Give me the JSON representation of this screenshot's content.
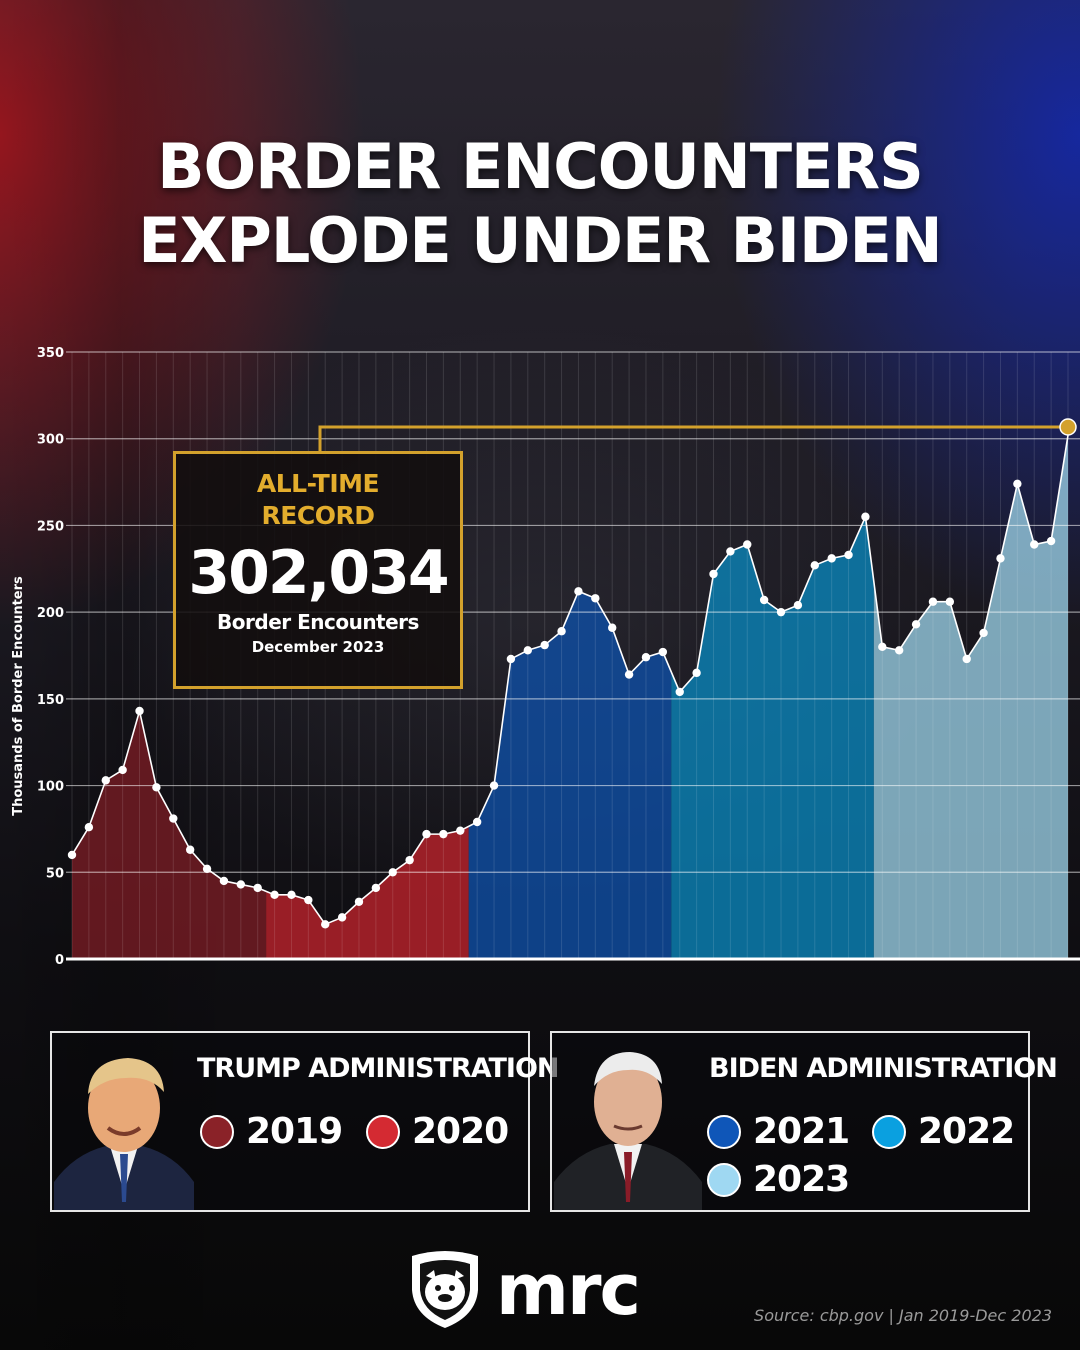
{
  "title": {
    "line1": "BORDER ENCOUNTERS",
    "line2": "EXPLODE UNDER BIDEN"
  },
  "chart_data": {
    "type": "area",
    "ylabel": "Thousands of Border Encounters",
    "ylim": [
      0,
      350
    ],
    "yticks": [
      0,
      50,
      100,
      150,
      200,
      250,
      300,
      350
    ],
    "x_period": "Jan 2019 - Dec 2023 (monthly)",
    "grid": true,
    "series": [
      {
        "name": "2019",
        "color": "#7a1c24",
        "values": [
          60,
          76,
          103,
          109,
          143,
          99,
          81,
          63,
          52,
          45,
          43,
          41
        ]
      },
      {
        "name": "2020",
        "color": "#c0222c",
        "values": [
          37,
          37,
          34,
          20,
          24,
          33,
          41,
          50,
          57,
          72,
          72,
          74
        ]
      },
      {
        "name": "2021",
        "color": "#0e4fa8",
        "values": [
          79,
          100,
          173,
          178,
          181,
          189,
          212,
          208,
          191,
          164,
          174,
          177
        ]
      },
      {
        "name": "2022",
        "color": "#0a86bd",
        "values": [
          154,
          165,
          222,
          235,
          239,
          207,
          200,
          204,
          227,
          231,
          233,
          255
        ]
      },
      {
        "name": "2023",
        "color": "#9ad0e6",
        "values": [
          180,
          178,
          193,
          206,
          206,
          173,
          188,
          231,
          274,
          239,
          241,
          302
        ]
      }
    ],
    "annotation": {
      "label": "ALL-TIME RECORD",
      "value": "302,034",
      "sub": "Border Encounters",
      "date": "December 2023",
      "color": "#d3a12c"
    }
  },
  "legend": {
    "trump": {
      "title": "TRUMP ADMINISTRATION",
      "items": [
        {
          "label": "2019",
          "color": "#8a2228"
        },
        {
          "label": "2020",
          "color": "#d42a32"
        }
      ]
    },
    "biden": {
      "title": "BIDEN ADMINISTRATION",
      "items": [
        {
          "label": "2021",
          "color": "#0f56b8"
        },
        {
          "label": "2022",
          "color": "#0aa0e0"
        },
        {
          "label": "2023",
          "color": "#9fd8f2"
        }
      ]
    }
  },
  "logo": {
    "text": "mrc"
  },
  "source": "Source: cbp.gov  |  Jan 2019-Dec 2023"
}
